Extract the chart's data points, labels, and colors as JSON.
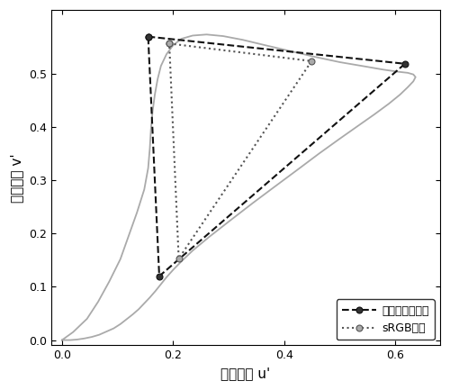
{
  "title": "",
  "xlabel": "色品坐标 u'",
  "ylabel": "色品坐标 v'",
  "xlim": [
    -0.02,
    0.68
  ],
  "ylim": [
    -0.01,
    0.62
  ],
  "xticks": [
    0,
    0.2,
    0.4,
    0.6
  ],
  "yticks": [
    0,
    0.1,
    0.2,
    0.3,
    0.4,
    0.5
  ],
  "locus_u": [
    0.0,
    0.02,
    0.045,
    0.065,
    0.085,
    0.105,
    0.12,
    0.135,
    0.148,
    0.155,
    0.158,
    0.16,
    0.163,
    0.167,
    0.172,
    0.178,
    0.188,
    0.2,
    0.215,
    0.235,
    0.26,
    0.29,
    0.325,
    0.365,
    0.41,
    0.455,
    0.5,
    0.545,
    0.578,
    0.605,
    0.622,
    0.632,
    0.636,
    0.632,
    0.622,
    0.608,
    0.588,
    0.562,
    0.532,
    0.498,
    0.462,
    0.425,
    0.385,
    0.344,
    0.303,
    0.265,
    0.235,
    0.215,
    0.2,
    0.188,
    0.178,
    0.168,
    0.158,
    0.148,
    0.138,
    0.127,
    0.116,
    0.105,
    0.093,
    0.08,
    0.067,
    0.054,
    0.04,
    0.027,
    0.015,
    0.007,
    0.002,
    0.0
  ],
  "locus_v": [
    0.0,
    0.015,
    0.04,
    0.072,
    0.11,
    0.152,
    0.196,
    0.24,
    0.283,
    0.323,
    0.36,
    0.396,
    0.43,
    0.461,
    0.49,
    0.515,
    0.537,
    0.554,
    0.566,
    0.572,
    0.574,
    0.571,
    0.564,
    0.554,
    0.543,
    0.532,
    0.522,
    0.514,
    0.508,
    0.504,
    0.502,
    0.499,
    0.494,
    0.486,
    0.475,
    0.461,
    0.444,
    0.424,
    0.402,
    0.377,
    0.35,
    0.321,
    0.29,
    0.258,
    0.225,
    0.194,
    0.168,
    0.148,
    0.132,
    0.118,
    0.105,
    0.092,
    0.08,
    0.069,
    0.058,
    0.048,
    0.039,
    0.03,
    0.022,
    0.016,
    0.01,
    0.006,
    0.003,
    0.001,
    0.0,
    0.0,
    0.0,
    0.0
  ],
  "large_gamut": {
    "u": [
      0.155,
      0.617,
      0.175,
      0.155
    ],
    "v": [
      0.57,
      0.519,
      0.12,
      0.57
    ],
    "color": "#111111",
    "linestyle": "--",
    "marker": "o",
    "markersize": 5,
    "linewidth": 1.5,
    "label": "大色域显示设备",
    "markerfacecolor": "#333333",
    "markeredgecolor": "#111111"
  },
  "srgb": {
    "u": [
      0.193,
      0.449,
      0.21,
      0.193
    ],
    "v": [
      0.557,
      0.524,
      0.153,
      0.557
    ],
    "color": "#555555",
    "linestyle": ":",
    "marker": "o",
    "markersize": 5,
    "linewidth": 1.5,
    "label": "sRGB标准",
    "markerfacecolor": "#aaaaaa",
    "markeredgecolor": "#555555"
  },
  "locus_color": "#aaaaaa",
  "locus_linewidth": 1.3,
  "bg_color": "#ffffff",
  "legend_fontsize": 9,
  "axis_label_fontsize": 11,
  "tick_fontsize": 9
}
